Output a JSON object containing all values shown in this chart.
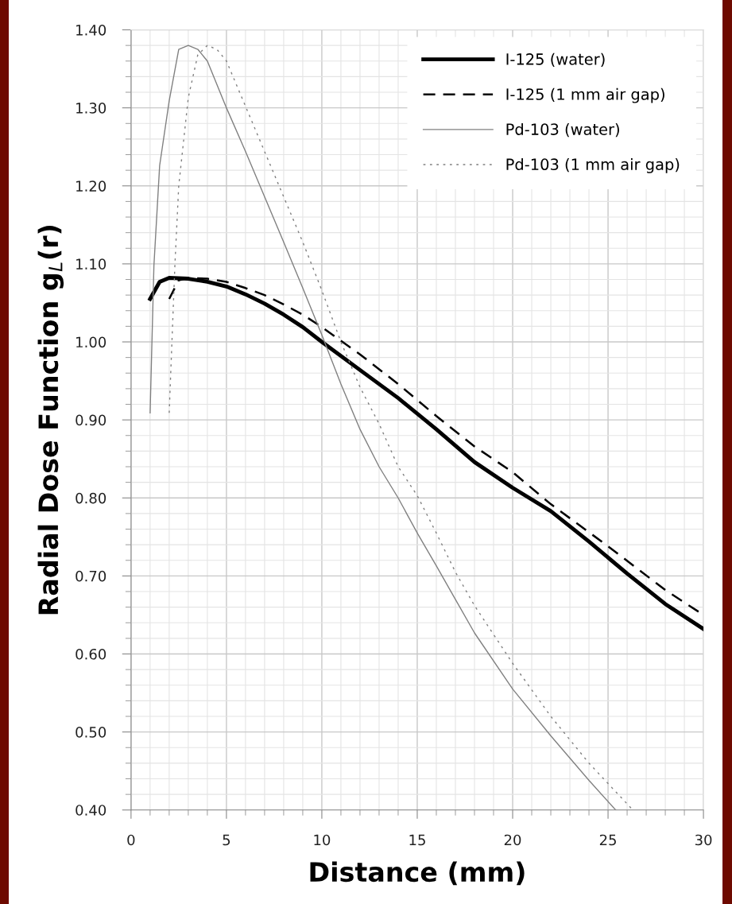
{
  "chart_data": {
    "type": "line",
    "xlabel": "Distance (mm)",
    "ylabel": "Radial Dose Function g$_{L}$(r)",
    "xlim": [
      0,
      30
    ],
    "xticks": [
      0,
      5,
      10,
      15,
      20,
      25,
      30
    ],
    "ylim": [
      0.4,
      1.4
    ],
    "yticks": [
      {
        "value": 0.4,
        "label": "0.40"
      },
      {
        "value": 0.5,
        "label": "0.50"
      },
      {
        "value": 0.6,
        "label": "0.60"
      },
      {
        "value": 0.7,
        "label": "0.70"
      },
      {
        "value": 0.8,
        "label": "0.80"
      },
      {
        "value": 0.9,
        "label": "0.90"
      },
      {
        "value": 1.0,
        "label": "1.00"
      },
      {
        "value": 1.1,
        "label": "1.10"
      },
      {
        "value": 1.2,
        "label": "1.20"
      },
      {
        "value": 1.3,
        "label": "1.30"
      },
      {
        "value": 1.4,
        "label": "1.40"
      }
    ],
    "grid": true,
    "legend": "top right",
    "series": [
      {
        "name": "I-125 (water)",
        "color": "#000000",
        "line_style": "solid",
        "x": [
          1,
          1.5,
          2,
          3,
          4,
          5,
          6,
          7,
          8,
          9,
          10,
          12,
          14,
          16,
          18,
          20,
          22,
          24,
          26,
          28,
          30
        ],
        "values": [
          1.055,
          1.077,
          1.082,
          1.081,
          1.077,
          1.071,
          1.061,
          1.049,
          1.035,
          1.019,
          1.0,
          0.964,
          0.928,
          0.888,
          0.846,
          0.813,
          0.783,
          0.744,
          0.703,
          0.664,
          0.632
        ]
      },
      {
        "name": "I-125 (1 mm air gap)",
        "color": "#000000",
        "line_style": "dashed",
        "x": [
          2,
          2.5,
          3,
          4,
          5,
          6,
          7,
          8,
          9,
          10,
          12,
          14,
          16,
          18,
          20,
          22,
          25,
          28,
          30
        ],
        "values": [
          1.055,
          1.079,
          1.082,
          1.081,
          1.077,
          1.069,
          1.06,
          1.048,
          1.035,
          1.019,
          0.984,
          0.946,
          0.905,
          0.866,
          0.833,
          0.792,
          0.738,
          0.682,
          0.65
        ]
      },
      {
        "name": "Pd-103 (water)",
        "color": "#808080",
        "line_style": "solid",
        "x": [
          1,
          1.2,
          1.5,
          2,
          2.5,
          3,
          3.5,
          4,
          5,
          6,
          7,
          8,
          9,
          10,
          11,
          12,
          13,
          14,
          15,
          16,
          17,
          18,
          20,
          22,
          24,
          25.4
        ],
        "values": [
          0.909,
          1.098,
          1.226,
          1.309,
          1.375,
          1.38,
          1.375,
          1.36,
          1.3,
          1.244,
          1.186,
          1.128,
          1.069,
          1.009,
          0.946,
          0.888,
          0.84,
          0.8,
          0.755,
          0.713,
          0.67,
          0.627,
          0.555,
          0.495,
          0.438,
          0.4
        ]
      },
      {
        "name": "Pd-103 (1 mm air gap)",
        "color": "#808080",
        "line_style": "dotted",
        "x": [
          2,
          2.3,
          2.5,
          3,
          3.5,
          4,
          4.5,
          5,
          6,
          7,
          8,
          9,
          10,
          11,
          12,
          13,
          14,
          15,
          16,
          17,
          18,
          20,
          22,
          24,
          26.3
        ],
        "values": [
          0.909,
          1.099,
          1.2,
          1.313,
          1.368,
          1.38,
          1.375,
          1.36,
          1.302,
          1.244,
          1.186,
          1.128,
          1.066,
          1.0,
          0.942,
          0.895,
          0.84,
          0.803,
          0.755,
          0.705,
          0.662,
          0.588,
          0.52,
          0.46,
          0.4
        ]
      }
    ]
  }
}
